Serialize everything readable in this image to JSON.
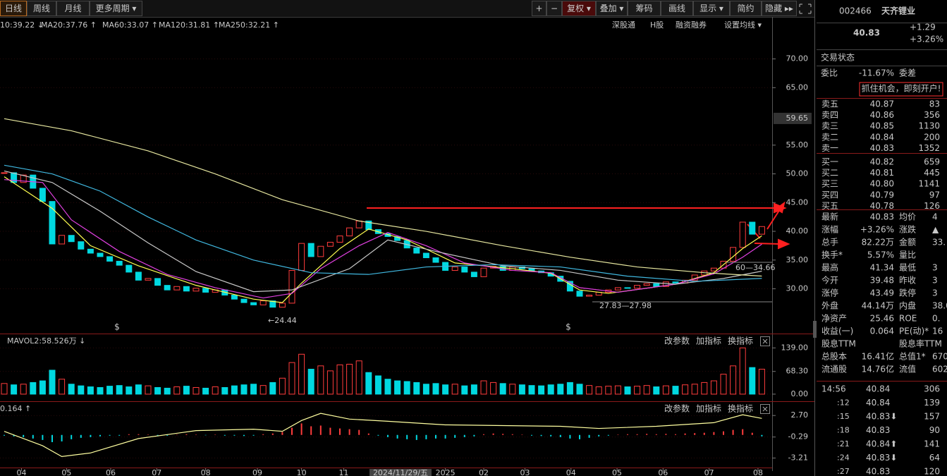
{
  "toolbar": {
    "tabs_left": [
      "日线",
      "周线",
      "月线",
      "更多周期 ▾"
    ],
    "tabs_right": [
      "+",
      "−",
      "复权 ▾",
      "叠加 ▾",
      "筹码",
      "画线",
      "显示 ▾",
      "简约",
      "隐藏 ▸▸"
    ]
  },
  "ma_legend": [
    "10:39.22 ↓",
    "MA20:37.76 ↑",
    "MA60:33.07 ↑",
    "MA120:31.81 ↑",
    "MA250:32.21 ↑"
  ],
  "chart_links": [
    "深股通",
    "H股",
    "融资融券",
    "设置均线 ▾"
  ],
  "panel_buttons": [
    "改参数",
    "加指标",
    "换指标"
  ],
  "chart_data": [
    {
      "type": "candlestick",
      "values": [
        50.2,
        48.5,
        49.8,
        47.5,
        45.2,
        37.8,
        39.3,
        38.2,
        36.9,
        36.2,
        35.6,
        34.8,
        34.1,
        32.9,
        31.5,
        31.8,
        30.6,
        29.8,
        30.4,
        29.6,
        30.1,
        29.4,
        29.8,
        28.9,
        28.2,
        27.6,
        27.2,
        27.9,
        26.8,
        27.5,
        33.2,
        37.9,
        35.6,
        37.4,
        38.1,
        39.2,
        40.6,
        41.8,
        40.3,
        39.6,
        39.1,
        38.4,
        37.1,
        36.2,
        35.4,
        34.6,
        33.2,
        33.8,
        32.9,
        32.1,
        33.6,
        33.9,
        33.2,
        33.8,
        33.5,
        33.1,
        32.8,
        32.2,
        31.3,
        29.6,
        28.7,
        28.9,
        29.4,
        29.8,
        30.2,
        30.1,
        30.6,
        30.9,
        30.4,
        31.2,
        31.0,
        31.5,
        32.4,
        33.1,
        33.6,
        34.8,
        37.2,
        41.6,
        39.5,
        40.83
      ],
      "up_color": "#ff3c3c",
      "down_color": "#00d8e0",
      "series": [
        {
          "color": "#ffff50",
          "x": [
            0,
            5,
            9,
            14,
            20,
            26,
            29,
            31,
            35,
            38,
            42,
            47,
            53,
            57,
            60,
            63,
            70,
            74,
            77,
            79
          ],
          "values": [
            49.5,
            44,
            37.5,
            34,
            30.6,
            28.2,
            27.6,
            31,
            37,
            40.4,
            38.5,
            34.5,
            33.5,
            32.7,
            29.8,
            29.2,
            30.8,
            32.8,
            37,
            39.22
          ]
        },
        {
          "color": "#e040e0",
          "x": [
            0,
            4,
            7,
            12,
            17,
            22,
            27,
            30,
            33,
            37,
            40,
            44,
            48,
            53,
            57,
            60,
            64,
            70,
            74,
            77,
            79
          ],
          "values": [
            49,
            48.5,
            42,
            36.5,
            32.5,
            30.2,
            28.4,
            29.2,
            33.5,
            37.5,
            39.8,
            37.5,
            34.5,
            33.2,
            32.8,
            30.2,
            29.4,
            30.8,
            32.6,
            35.5,
            37.76
          ]
        },
        {
          "color": "#c8c8c8",
          "x": [
            0,
            5,
            10,
            15,
            20,
            26,
            30,
            36,
            40,
            45,
            52,
            58,
            64,
            70,
            75,
            79
          ],
          "values": [
            50.5,
            48.5,
            43.5,
            38,
            33,
            29.5,
            29.8,
            33.5,
            38.5,
            36.5,
            34,
            33.2,
            31.5,
            30.8,
            31.8,
            33.07
          ]
        },
        {
          "color": "#40b8e0",
          "x": [
            0,
            5,
            10,
            15,
            20,
            26,
            32,
            38,
            44,
            51,
            58,
            65,
            72,
            79
          ],
          "values": [
            51.5,
            50,
            47,
            42.5,
            38.5,
            35,
            32.8,
            32.5,
            33.8,
            34.2,
            33.8,
            32.2,
            31.3,
            31.81
          ]
        },
        {
          "color": "#e8e8a0",
          "x": [
            0,
            7,
            15,
            22,
            29,
            37,
            44,
            52,
            59,
            66,
            73,
            79
          ],
          "values": [
            59.6,
            57.5,
            54,
            50,
            45.5,
            41.8,
            40,
            37.5,
            35.5,
            33.8,
            32.8,
            32.21
          ]
        }
      ],
      "ylim": [
        22.58,
        72.4
      ],
      "yticks": [
        {
          "value": 70,
          "label": "70.00"
        },
        {
          "value": 65,
          "label": "65.00"
        },
        {
          "value": 55,
          "label": "55.00"
        },
        {
          "value": 50,
          "label": "50.00"
        },
        {
          "value": 45,
          "label": "45.00"
        },
        {
          "value": 40,
          "label": "40.00"
        },
        {
          "value": 35,
          "label": "35.00"
        },
        {
          "value": 30,
          "label": "30.00"
        }
      ],
      "price_marker": {
        "value": 59.65,
        "label": "59.65"
      },
      "xticks": [
        {
          "value": 1.8,
          "label": "04"
        },
        {
          "value": 6.5,
          "label": "05"
        },
        {
          "value": 11.1,
          "label": "06"
        },
        {
          "value": 15.9,
          "label": "07"
        },
        {
          "value": 21,
          "label": "08"
        },
        {
          "value": 26.4,
          "label": "09"
        },
        {
          "value": 31,
          "label": "10"
        },
        {
          "value": 35.4,
          "label": "11"
        },
        {
          "value": 46,
          "label": "2025"
        },
        {
          "value": 50,
          "label": "02"
        },
        {
          "value": 54.3,
          "label": "03"
        },
        {
          "value": 59.1,
          "label": "04"
        },
        {
          "value": 63.9,
          "label": "05"
        },
        {
          "value": 68.7,
          "label": "06"
        },
        {
          "value": 73.5,
          "label": "07"
        },
        {
          "value": 78.6,
          "label": "08"
        }
      ],
      "cursor_label": "2024/11/29/五",
      "annotations": [
        "←24.44",
        "27.83—27.98",
        "60—34.66",
        "$",
        "$"
      ]
    },
    {
      "type": "bar",
      "title": "MAVOL2:58.526万 ↓",
      "values": [
        32,
        28,
        30,
        35,
        40,
        72,
        45,
        30,
        25,
        22,
        20,
        24,
        26,
        22,
        28,
        25,
        20,
        18,
        22,
        24,
        20,
        18,
        22,
        20,
        25,
        28,
        30,
        26,
        35,
        48,
        95,
        120,
        75,
        85,
        70,
        88,
        90,
        100,
        65,
        55,
        45,
        40,
        38,
        35,
        30,
        32,
        28,
        30,
        25,
        28,
        40,
        35,
        32,
        30,
        28,
        26,
        25,
        28,
        30,
        35,
        30,
        26,
        22,
        24,
        25,
        22,
        24,
        26,
        22,
        25,
        24,
        28,
        30,
        35,
        40,
        60,
        85,
        139,
        80,
        75
      ],
      "ylim": [
        -15,
        180
      ],
      "yticks": [
        {
          "value": 139,
          "label": "139.00"
        },
        {
          "value": 68.3,
          "label": "68.30"
        },
        {
          "value": 0,
          "label": "0.00"
        }
      ]
    },
    {
      "type": "bar",
      "title": "0.164 ↑",
      "values": [
        -0.1,
        -0.2,
        -0.3,
        -0.5,
        -0.7,
        -1.0,
        -0.9,
        -0.6,
        -0.4,
        -0.3,
        -0.2,
        -0.1,
        -0.1,
        0.1,
        0.1,
        0.05,
        -0.1,
        -0.1,
        0.05,
        0.1,
        0.05,
        -0.05,
        0.05,
        -0.1,
        -0.1,
        -0.15,
        -0.1,
        0.1,
        0.2,
        0.4,
        1.0,
        1.6,
        1.2,
        1.3,
        1.0,
        0.9,
        0.8,
        0.7,
        0.2,
        -0.1,
        -0.3,
        -0.5,
        -0.6,
        -0.7,
        -0.6,
        -0.5,
        -0.5,
        -0.4,
        -0.3,
        -0.2,
        0.1,
        0.2,
        0.15,
        0.1,
        0.05,
        -0.1,
        -0.15,
        -0.2,
        -0.3,
        -0.5,
        -0.6,
        -0.4,
        -0.2,
        -0.1,
        0.05,
        0.1,
        0.1,
        0.15,
        0.1,
        0.15,
        0.1,
        0.2,
        0.25,
        0.3,
        0.4,
        0.5,
        0.7,
        0.8,
        0.3,
        -0.2
      ],
      "line": {
        "color": "#ffffa0",
        "x": [
          0,
          4,
          6,
          9,
          14,
          20,
          26,
          29,
          31,
          33,
          36,
          40,
          46,
          52,
          58,
          62,
          68,
          74,
          77,
          79
        ],
        "values": [
          0.5,
          -1.5,
          -3.0,
          -2.5,
          -0.5,
          0.6,
          0.8,
          0.5,
          2.0,
          3.0,
          2.2,
          1.9,
          1.4,
          1.3,
          1.2,
          0.9,
          1.2,
          1.7,
          2.8,
          2.3
        ]
      },
      "ylim": [
        -4.43,
        4.58
      ],
      "yticks": [
        {
          "value": 2.7,
          "label": "2.70"
        },
        {
          "value": -0.29,
          "label": "-0.29"
        },
        {
          "value": -3.21,
          "label": "-3.21"
        }
      ]
    }
  ],
  "quote": {
    "code": "002466",
    "name": "天齐锂业",
    "price": "40.83",
    "change": "+1.29",
    "change_pct": "+3.26%",
    "status_label": "交易状态",
    "weibi_label": "委比",
    "weibi": "-11.67%",
    "weicha_label": "委差",
    "banner": "抓住机会，即刻开户!"
  },
  "order_book": [
    {
      "label": "卖五",
      "price": "40.87",
      "volume": "83"
    },
    {
      "label": "卖四",
      "price": "40.86",
      "volume": "356"
    },
    {
      "label": "卖三",
      "price": "40.85",
      "volume": "1130"
    },
    {
      "label": "卖二",
      "price": "40.84",
      "volume": "200"
    },
    {
      "label": "卖一",
      "price": "40.83",
      "volume": "1352"
    },
    {
      "label": "买一",
      "price": "40.82",
      "volume": "659"
    },
    {
      "label": "买二",
      "price": "40.81",
      "volume": "445"
    },
    {
      "label": "买三",
      "price": "40.80",
      "volume": "1141"
    },
    {
      "label": "买四",
      "price": "40.79",
      "volume": "97"
    },
    {
      "label": "买五",
      "price": "40.78",
      "volume": "126"
    }
  ],
  "stats": [
    {
      "label": "最新",
      "value": "40.83",
      "label2": "均价",
      "value2": "4"
    },
    {
      "label": "涨幅",
      "value": "+3.26%",
      "label2": "涨跌",
      "value2": "▲"
    },
    {
      "label": "总手",
      "value": "82.22万",
      "label2": "金额",
      "value2": "33."
    },
    {
      "label": "换手*",
      "value": "5.57%",
      "label2": "量比"
    },
    {
      "label": "最高",
      "value": "41.34",
      "label2": "最低",
      "value2": "3"
    },
    {
      "label": "今开",
      "value": "39.48",
      "label2": "昨收",
      "value2": "3"
    },
    {
      "label": "涨停",
      "value": "43.49",
      "label2": "跌停",
      "value2": "3"
    },
    {
      "label": "外盘",
      "value": "44.14万",
      "label2": "内盘",
      "value2": "38.0"
    },
    {
      "label": "净资产",
      "value": "25.46",
      "label2": "ROE",
      "value2": "0."
    },
    {
      "label": "收益(一)",
      "value": "0.064",
      "label2": "PE(动)*",
      "value2": "16"
    },
    {
      "label": "股息TTM",
      "label2": "股息率TTM"
    },
    {
      "label": "总股本",
      "value": "16.41亿",
      "label2": "总值1*",
      "value2": "670"
    },
    {
      "label": "流通股",
      "value": "14.76亿",
      "label2": "流值",
      "value2": "602"
    }
  ],
  "trades": [
    {
      "time": "14:56",
      "price": "40.84",
      "volume": "306"
    },
    {
      "time": ":12",
      "price": "40.84",
      "volume": "139"
    },
    {
      "time": ":15",
      "price": "40.83⬇",
      "volume": "157"
    },
    {
      "time": ":18",
      "price": "40.83",
      "volume": "90"
    },
    {
      "time": ":21",
      "price": "40.84⬆",
      "volume": "141"
    },
    {
      "time": ":24",
      "price": "40.83⬇",
      "volume": "64"
    },
    {
      "time": ":27",
      "price": "40.83",
      "volume": "120"
    }
  ]
}
